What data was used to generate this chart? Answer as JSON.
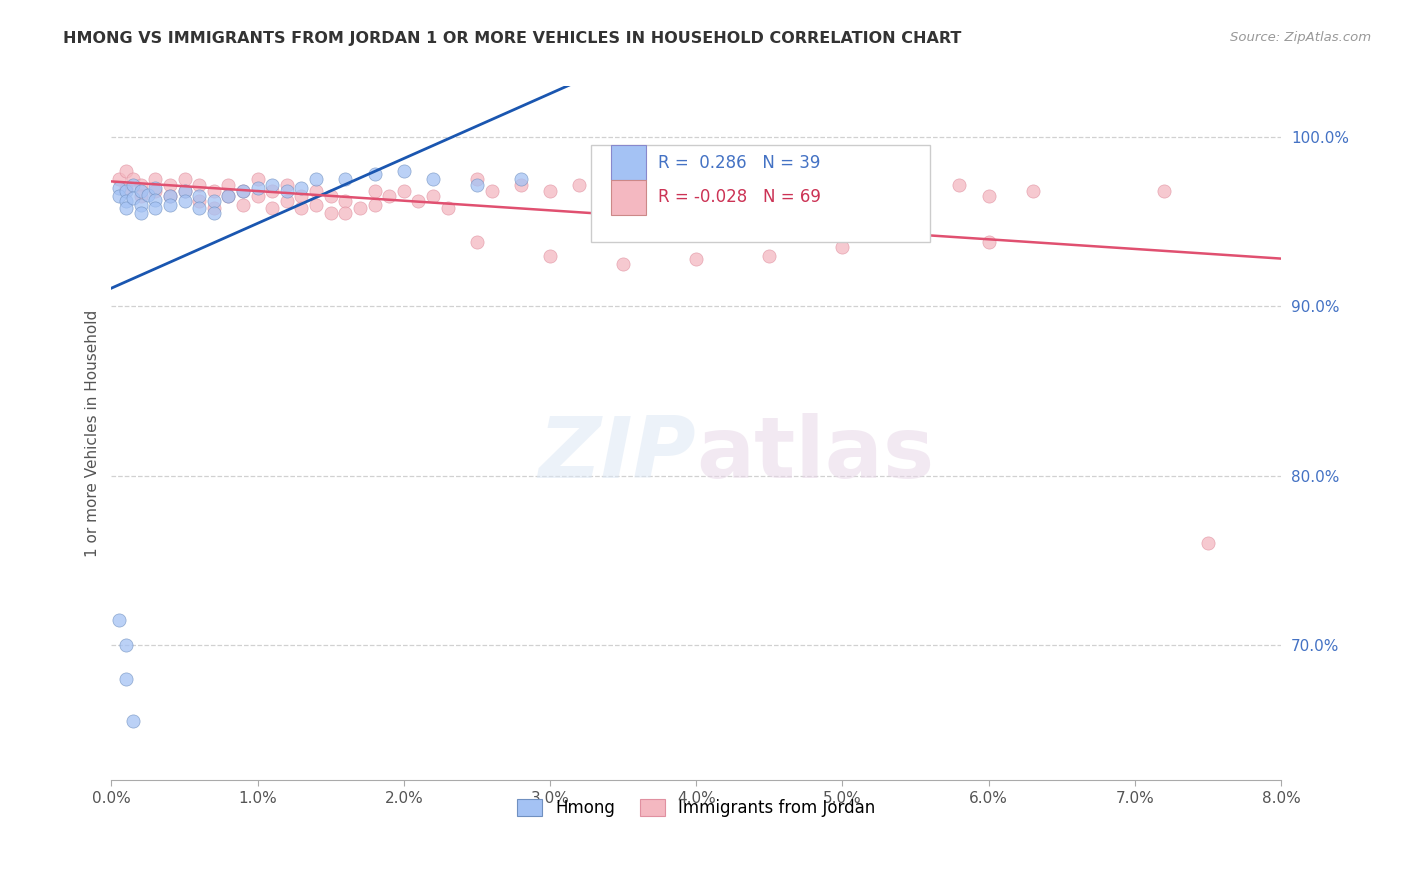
{
  "title": "HMONG VS IMMIGRANTS FROM JORDAN 1 OR MORE VEHICLES IN HOUSEHOLD CORRELATION CHART",
  "source": "Source: ZipAtlas.com",
  "ylabel": "1 or more Vehicles in Household",
  "xlim": [
    0.0,
    0.08
  ],
  "ylim": [
    0.62,
    1.03
  ],
  "legend_label1": "Hmong",
  "legend_label2": "Immigrants from Jordan",
  "r1": 0.286,
  "n1": 39,
  "r2": -0.028,
  "n2": 69,
  "color_blue": "#a4c2f4",
  "color_pink": "#f4b8c1",
  "trendline_blue": "#1a56b0",
  "trendline_pink": "#e05070",
  "hmong_x": [
    0.0005,
    0.0005,
    0.001,
    0.001,
    0.001,
    0.0015,
    0.0015,
    0.002,
    0.002,
    0.002,
    0.0025,
    0.003,
    0.003,
    0.003,
    0.004,
    0.004,
    0.005,
    0.005,
    0.006,
    0.006,
    0.007,
    0.007,
    0.008,
    0.009,
    0.01,
    0.011,
    0.012,
    0.013,
    0.014,
    0.016,
    0.018,
    0.02,
    0.022,
    0.025,
    0.028,
    0.0005,
    0.001,
    0.001,
    0.0015
  ],
  "hmong_y": [
    0.97,
    0.965,
    0.968,
    0.962,
    0.958,
    0.972,
    0.964,
    0.968,
    0.96,
    0.955,
    0.966,
    0.97,
    0.963,
    0.958,
    0.965,
    0.96,
    0.968,
    0.962,
    0.965,
    0.958,
    0.962,
    0.955,
    0.965,
    0.968,
    0.97,
    0.972,
    0.968,
    0.97,
    0.975,
    0.975,
    0.978,
    0.98,
    0.975,
    0.972,
    0.975,
    0.715,
    0.7,
    0.68,
    0.655
  ],
  "jordan_x": [
    0.0005,
    0.001,
    0.001,
    0.0015,
    0.002,
    0.002,
    0.003,
    0.003,
    0.004,
    0.004,
    0.005,
    0.005,
    0.006,
    0.006,
    0.007,
    0.007,
    0.008,
    0.008,
    0.009,
    0.009,
    0.01,
    0.01,
    0.011,
    0.011,
    0.012,
    0.012,
    0.013,
    0.013,
    0.014,
    0.014,
    0.015,
    0.015,
    0.016,
    0.016,
    0.017,
    0.018,
    0.018,
    0.019,
    0.02,
    0.021,
    0.022,
    0.023,
    0.025,
    0.026,
    0.028,
    0.03,
    0.032,
    0.034,
    0.036,
    0.038,
    0.04,
    0.042,
    0.045,
    0.048,
    0.05,
    0.052,
    0.055,
    0.058,
    0.06,
    0.063,
    0.025,
    0.03,
    0.035,
    0.04,
    0.045,
    0.05,
    0.06,
    0.072,
    0.075
  ],
  "jordan_y": [
    0.975,
    0.98,
    0.97,
    0.975,
    0.972,
    0.965,
    0.975,
    0.968,
    0.972,
    0.965,
    0.975,
    0.968,
    0.972,
    0.962,
    0.968,
    0.958,
    0.972,
    0.965,
    0.968,
    0.96,
    0.975,
    0.965,
    0.968,
    0.958,
    0.972,
    0.962,
    0.965,
    0.958,
    0.968,
    0.96,
    0.965,
    0.955,
    0.962,
    0.955,
    0.958,
    0.968,
    0.96,
    0.965,
    0.968,
    0.962,
    0.965,
    0.958,
    0.975,
    0.968,
    0.972,
    0.968,
    0.972,
    0.965,
    0.968,
    0.972,
    0.965,
    0.968,
    0.972,
    0.968,
    0.965,
    0.968,
    0.968,
    0.972,
    0.965,
    0.968,
    0.938,
    0.93,
    0.925,
    0.928,
    0.93,
    0.935,
    0.938,
    0.968,
    0.76
  ],
  "x_ticks": [
    0.0,
    0.01,
    0.02,
    0.03,
    0.04,
    0.05,
    0.06,
    0.07,
    0.08
  ],
  "y_ticks": [
    0.7,
    0.8,
    0.9,
    1.0
  ],
  "y_tick_labels": [
    "70.0%",
    "80.0%",
    "90.0%",
    "100.0%"
  ],
  "marker_size": 90
}
